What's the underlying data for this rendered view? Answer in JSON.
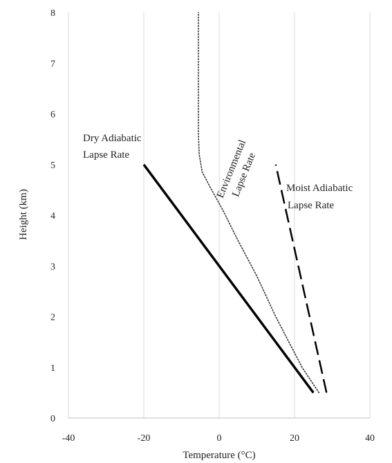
{
  "chart_data": {
    "type": "line",
    "title": "",
    "xlabel": "Temperature (°C)",
    "ylabel": "Height (km)",
    "xlim": [
      -40,
      40
    ],
    "ylim": [
      0,
      8
    ],
    "xticks": [
      -40,
      -20,
      0,
      20,
      40
    ],
    "yticks": [
      0,
      1,
      2,
      3,
      4,
      5,
      6,
      7,
      8
    ],
    "grid": "vertical",
    "legend": "none",
    "series": [
      {
        "name": "Dry Adiabatic Lapse Rate",
        "style": "solid",
        "color": "#000000",
        "points": [
          [
            25,
            0.5
          ],
          [
            -20,
            5.0
          ]
        ]
      },
      {
        "name": "Moist Adiabatic Lapse Rate",
        "style": "dashed",
        "color": "#000000",
        "points": [
          [
            28.5,
            0.5
          ],
          [
            15,
            5.0
          ]
        ]
      },
      {
        "name": "Environmental Lapse Rate",
        "style": "dotted",
        "color": "#333333",
        "points": [
          [
            26.5,
            0.5
          ],
          [
            22,
            1.0
          ],
          [
            15,
            2.0
          ],
          [
            10,
            2.8
          ],
          [
            5,
            3.5
          ],
          [
            1,
            4.1
          ],
          [
            -2,
            4.5
          ],
          [
            -4.5,
            4.85
          ],
          [
            -5.3,
            5.2
          ],
          [
            -5.5,
            5.6
          ],
          [
            -5.5,
            6.0
          ],
          [
            -5.5,
            7.0
          ],
          [
            -5.5,
            8.0
          ]
        ]
      }
    ],
    "annotations": [
      {
        "lines": [
          "Dry Adiabatic",
          "Lapse Rate"
        ],
        "series": "Dry Adiabatic Lapse Rate"
      },
      {
        "lines": [
          "Environmental",
          "Lapse Rate"
        ],
        "series": "Environmental Lapse Rate"
      },
      {
        "lines": [
          "Moist Adiabatic",
          "Lapse Rate"
        ],
        "series": "Moist Adiabatic Lapse Rate"
      }
    ]
  }
}
